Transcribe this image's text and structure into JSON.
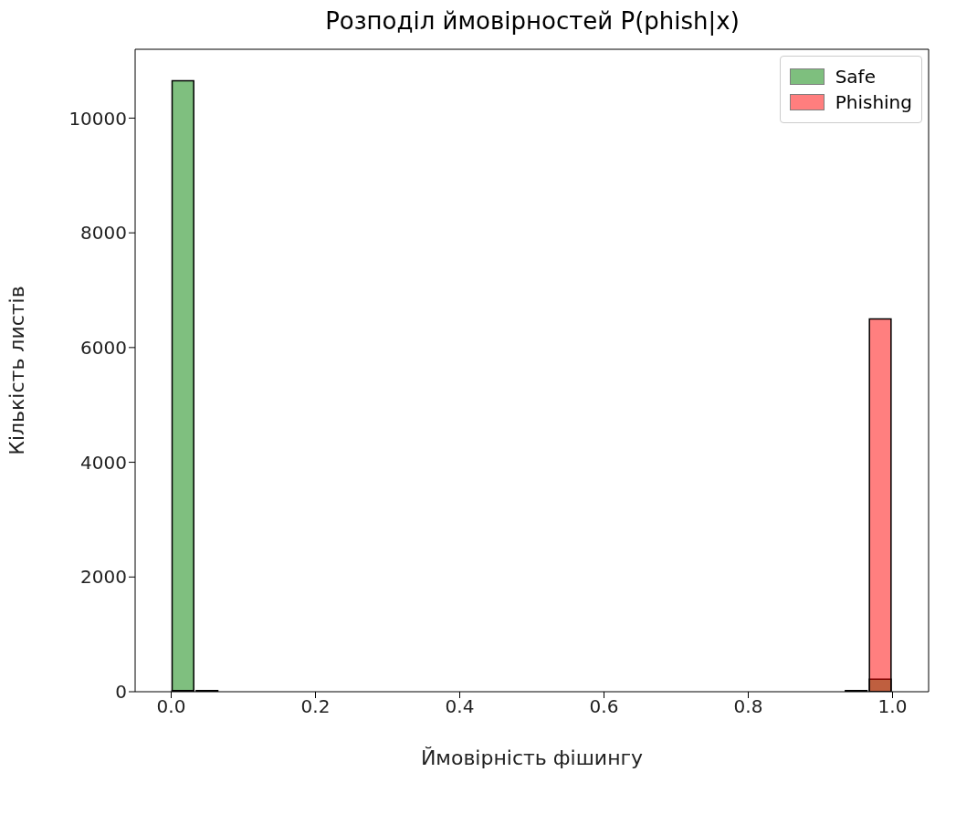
{
  "chart_data": {
    "type": "histogram",
    "title": "Розподіл ймовірностей P(phish|x)",
    "xlabel": "Ймовірність фішингу",
    "ylabel": "Кількість листів",
    "bins": [
      0,
      0.0333,
      0.0667,
      0.1,
      0.1333,
      0.1667,
      0.2,
      0.2333,
      0.2667,
      0.3,
      0.3333,
      0.3667,
      0.4,
      0.4333,
      0.4667,
      0.5,
      0.5333,
      0.5667,
      0.6,
      0.6333,
      0.6667,
      0.7,
      0.7333,
      0.7667,
      0.8,
      0.8333,
      0.8667,
      0.9,
      0.9333,
      0.9667,
      1
    ],
    "series": [
      {
        "name": "Safe",
        "color": "#008000",
        "values": [
          10650,
          20,
          0,
          0,
          0,
          0,
          0,
          0,
          0,
          0,
          0,
          0,
          0,
          0,
          0,
          0,
          0,
          0,
          0,
          0,
          0,
          0,
          0,
          0,
          0,
          0,
          0,
          0,
          0,
          220
        ]
      },
      {
        "name": "Phishing",
        "color": "#ff0000",
        "values": [
          20,
          0,
          0,
          0,
          0,
          0,
          0,
          0,
          0,
          0,
          0,
          0,
          0,
          0,
          0,
          0,
          0,
          0,
          0,
          0,
          0,
          0,
          0,
          0,
          0,
          0,
          0,
          0,
          20,
          6500
        ]
      }
    ],
    "xlim": [
      -0.05,
      1.05
    ],
    "xticks": [
      {
        "value": 0,
        "label": "0.0"
      },
      {
        "value": 0.2,
        "label": "0.2"
      },
      {
        "value": 0.4,
        "label": "0.4"
      },
      {
        "value": 0.6,
        "label": "0.6"
      },
      {
        "value": 0.8,
        "label": "0.8"
      },
      {
        "value": 1,
        "label": "1.0"
      }
    ],
    "ylim": [
      0,
      11200
    ],
    "yticks": [
      0,
      2000,
      4000,
      6000,
      8000,
      10000
    ],
    "grid": false,
    "legend": "top right"
  }
}
